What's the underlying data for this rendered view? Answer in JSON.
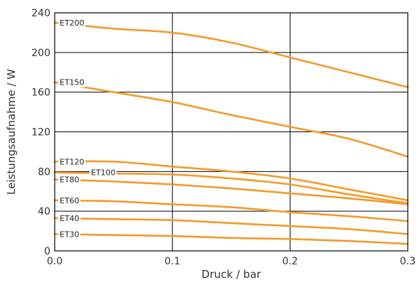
{
  "chart_data": {
    "type": "line",
    "xlabel": "Druck / bar",
    "ylabel": "Leistungsaufnahme / W",
    "xlim": [
      0,
      0.3
    ],
    "ylim": [
      0,
      240
    ],
    "x_ticks": [
      0.0,
      0.1,
      0.2,
      0.3
    ],
    "x_tick_labels": [
      "0.0",
      "0.1",
      "0.2",
      "0.3"
    ],
    "y_ticks": [
      0,
      40,
      80,
      120,
      160,
      200,
      240
    ],
    "y_tick_labels": [
      "0",
      "40",
      "80",
      "120",
      "160",
      "200",
      "240"
    ],
    "grid": true,
    "line_color": "#F39A2A",
    "series": [
      {
        "name": "ET200",
        "x": [
          0.0,
          0.05,
          0.1,
          0.15,
          0.2,
          0.25,
          0.3
        ],
        "y": [
          230,
          224,
          220,
          210,
          195,
          180,
          165
        ]
      },
      {
        "name": "ET150",
        "x": [
          0.0,
          0.05,
          0.1,
          0.15,
          0.2,
          0.25,
          0.3
        ],
        "y": [
          170,
          160,
          150,
          137,
          125,
          113,
          95
        ]
      },
      {
        "name": "ET120",
        "x": [
          0.0,
          0.05,
          0.1,
          0.15,
          0.2,
          0.25,
          0.3
        ],
        "y": [
          90,
          90,
          85,
          80,
          73,
          62,
          51
        ]
      },
      {
        "name": "ET100",
        "x": [
          0.0,
          0.05,
          0.1,
          0.15,
          0.2,
          0.25,
          0.3
        ],
        "y": [
          79,
          78,
          77,
          73,
          67,
          57,
          48
        ]
      },
      {
        "name": "ET80",
        "x": [
          0.0,
          0.05,
          0.1,
          0.15,
          0.2,
          0.25,
          0.3
        ],
        "y": [
          72,
          70,
          67,
          63,
          58,
          53,
          47
        ]
      },
      {
        "name": "ET60",
        "x": [
          0.0,
          0.05,
          0.1,
          0.15,
          0.2,
          0.25,
          0.3
        ],
        "y": [
          51,
          50,
          47,
          44,
          39,
          35,
          30
        ]
      },
      {
        "name": "ET40",
        "x": [
          0.0,
          0.05,
          0.1,
          0.15,
          0.2,
          0.25,
          0.3
        ],
        "y": [
          33,
          32,
          31,
          28,
          25,
          22,
          17
        ]
      },
      {
        "name": "ET30",
        "x": [
          0.0,
          0.05,
          0.1,
          0.15,
          0.2,
          0.25,
          0.3
        ],
        "y": [
          17,
          16,
          15,
          13,
          12,
          10,
          7
        ]
      }
    ]
  }
}
